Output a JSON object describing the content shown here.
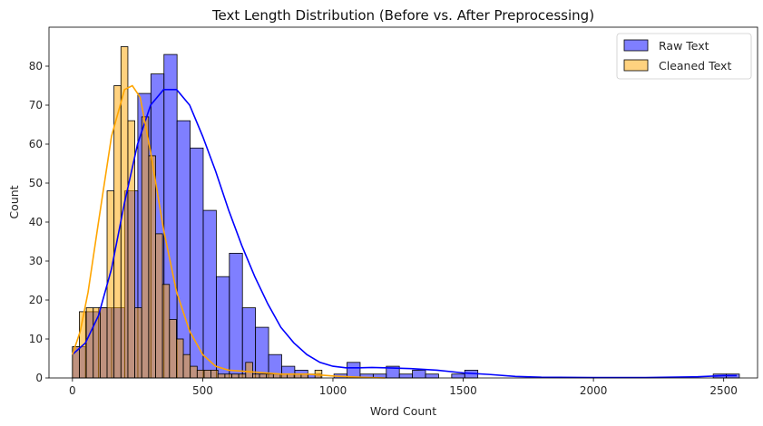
{
  "chart_data": {
    "type": "histogram",
    "title": "Text Length Distribution (Before vs. After Preprocessing)",
    "xlabel": "Word Count",
    "ylabel": "Count",
    "xlim": [
      -90,
      2630
    ],
    "ylim": [
      0,
      90
    ],
    "xticks": [
      0,
      500,
      1000,
      1500,
      2000,
      2500
    ],
    "yticks": [
      0,
      10,
      20,
      30,
      40,
      50,
      60,
      70,
      80
    ],
    "legend_position": "top-right",
    "grid": false,
    "series": [
      {
        "name": "Raw Text",
        "color": "#0000ff",
        "bin_start": 0,
        "bin_width": 50.2,
        "counts": [
          8,
          17,
          18,
          18,
          48,
          73,
          78,
          83,
          66,
          59,
          43,
          26,
          32,
          18,
          13,
          6,
          3,
          2,
          1,
          0,
          1,
          4,
          1,
          1,
          3,
          1,
          2,
          1,
          0,
          1,
          2,
          0,
          0,
          0,
          0,
          0,
          0,
          0,
          0,
          0,
          0,
          0,
          0,
          0,
          0,
          0,
          0,
          0,
          0,
          1,
          1
        ],
        "kde": [
          [
            0,
            6
          ],
          [
            50,
            9
          ],
          [
            100,
            16
          ],
          [
            150,
            28
          ],
          [
            200,
            45
          ],
          [
            250,
            60
          ],
          [
            300,
            70
          ],
          [
            350,
            74
          ],
          [
            400,
            74
          ],
          [
            450,
            70
          ],
          [
            500,
            62
          ],
          [
            550,
            53
          ],
          [
            600,
            43
          ],
          [
            650,
            34
          ],
          [
            700,
            26
          ],
          [
            750,
            19
          ],
          [
            800,
            13
          ],
          [
            850,
            9
          ],
          [
            900,
            6
          ],
          [
            950,
            4
          ],
          [
            1000,
            3
          ],
          [
            1050,
            2.6
          ],
          [
            1100,
            2.6
          ],
          [
            1150,
            2.7
          ],
          [
            1200,
            2.6
          ],
          [
            1300,
            2.4
          ],
          [
            1400,
            2
          ],
          [
            1500,
            1.3
          ],
          [
            1600,
            0.9
          ],
          [
            1700,
            0.4
          ],
          [
            1800,
            0.2
          ],
          [
            2000,
            0.1
          ],
          [
            2200,
            0.1
          ],
          [
            2400,
            0.3
          ],
          [
            2500,
            0.6
          ],
          [
            2550,
            0.6
          ]
        ]
      },
      {
        "name": "Cleaned Text",
        "color": "#ffa500",
        "bin_start": 0,
        "bin_width": 26.6,
        "counts": [
          8,
          17,
          18,
          18,
          18,
          48,
          75,
          85,
          66,
          18,
          67,
          57,
          37,
          24,
          15,
          10,
          6,
          3,
          2,
          2,
          2,
          1,
          1,
          1,
          1,
          4,
          1,
          1,
          1,
          1,
          1,
          1,
          1,
          1,
          0,
          2
        ],
        "kde": [
          [
            0,
            6
          ],
          [
            30,
            12
          ],
          [
            60,
            22
          ],
          [
            100,
            40
          ],
          [
            150,
            62
          ],
          [
            200,
            74
          ],
          [
            230,
            75
          ],
          [
            260,
            72
          ],
          [
            300,
            58
          ],
          [
            350,
            38
          ],
          [
            400,
            22
          ],
          [
            450,
            12
          ],
          [
            500,
            6
          ],
          [
            550,
            3
          ],
          [
            600,
            2
          ],
          [
            700,
            1.5
          ],
          [
            800,
            1
          ],
          [
            900,
            1
          ],
          [
            1000,
            0.5
          ],
          [
            1100,
            0.2
          ],
          [
            1200,
            0
          ]
        ]
      }
    ]
  }
}
